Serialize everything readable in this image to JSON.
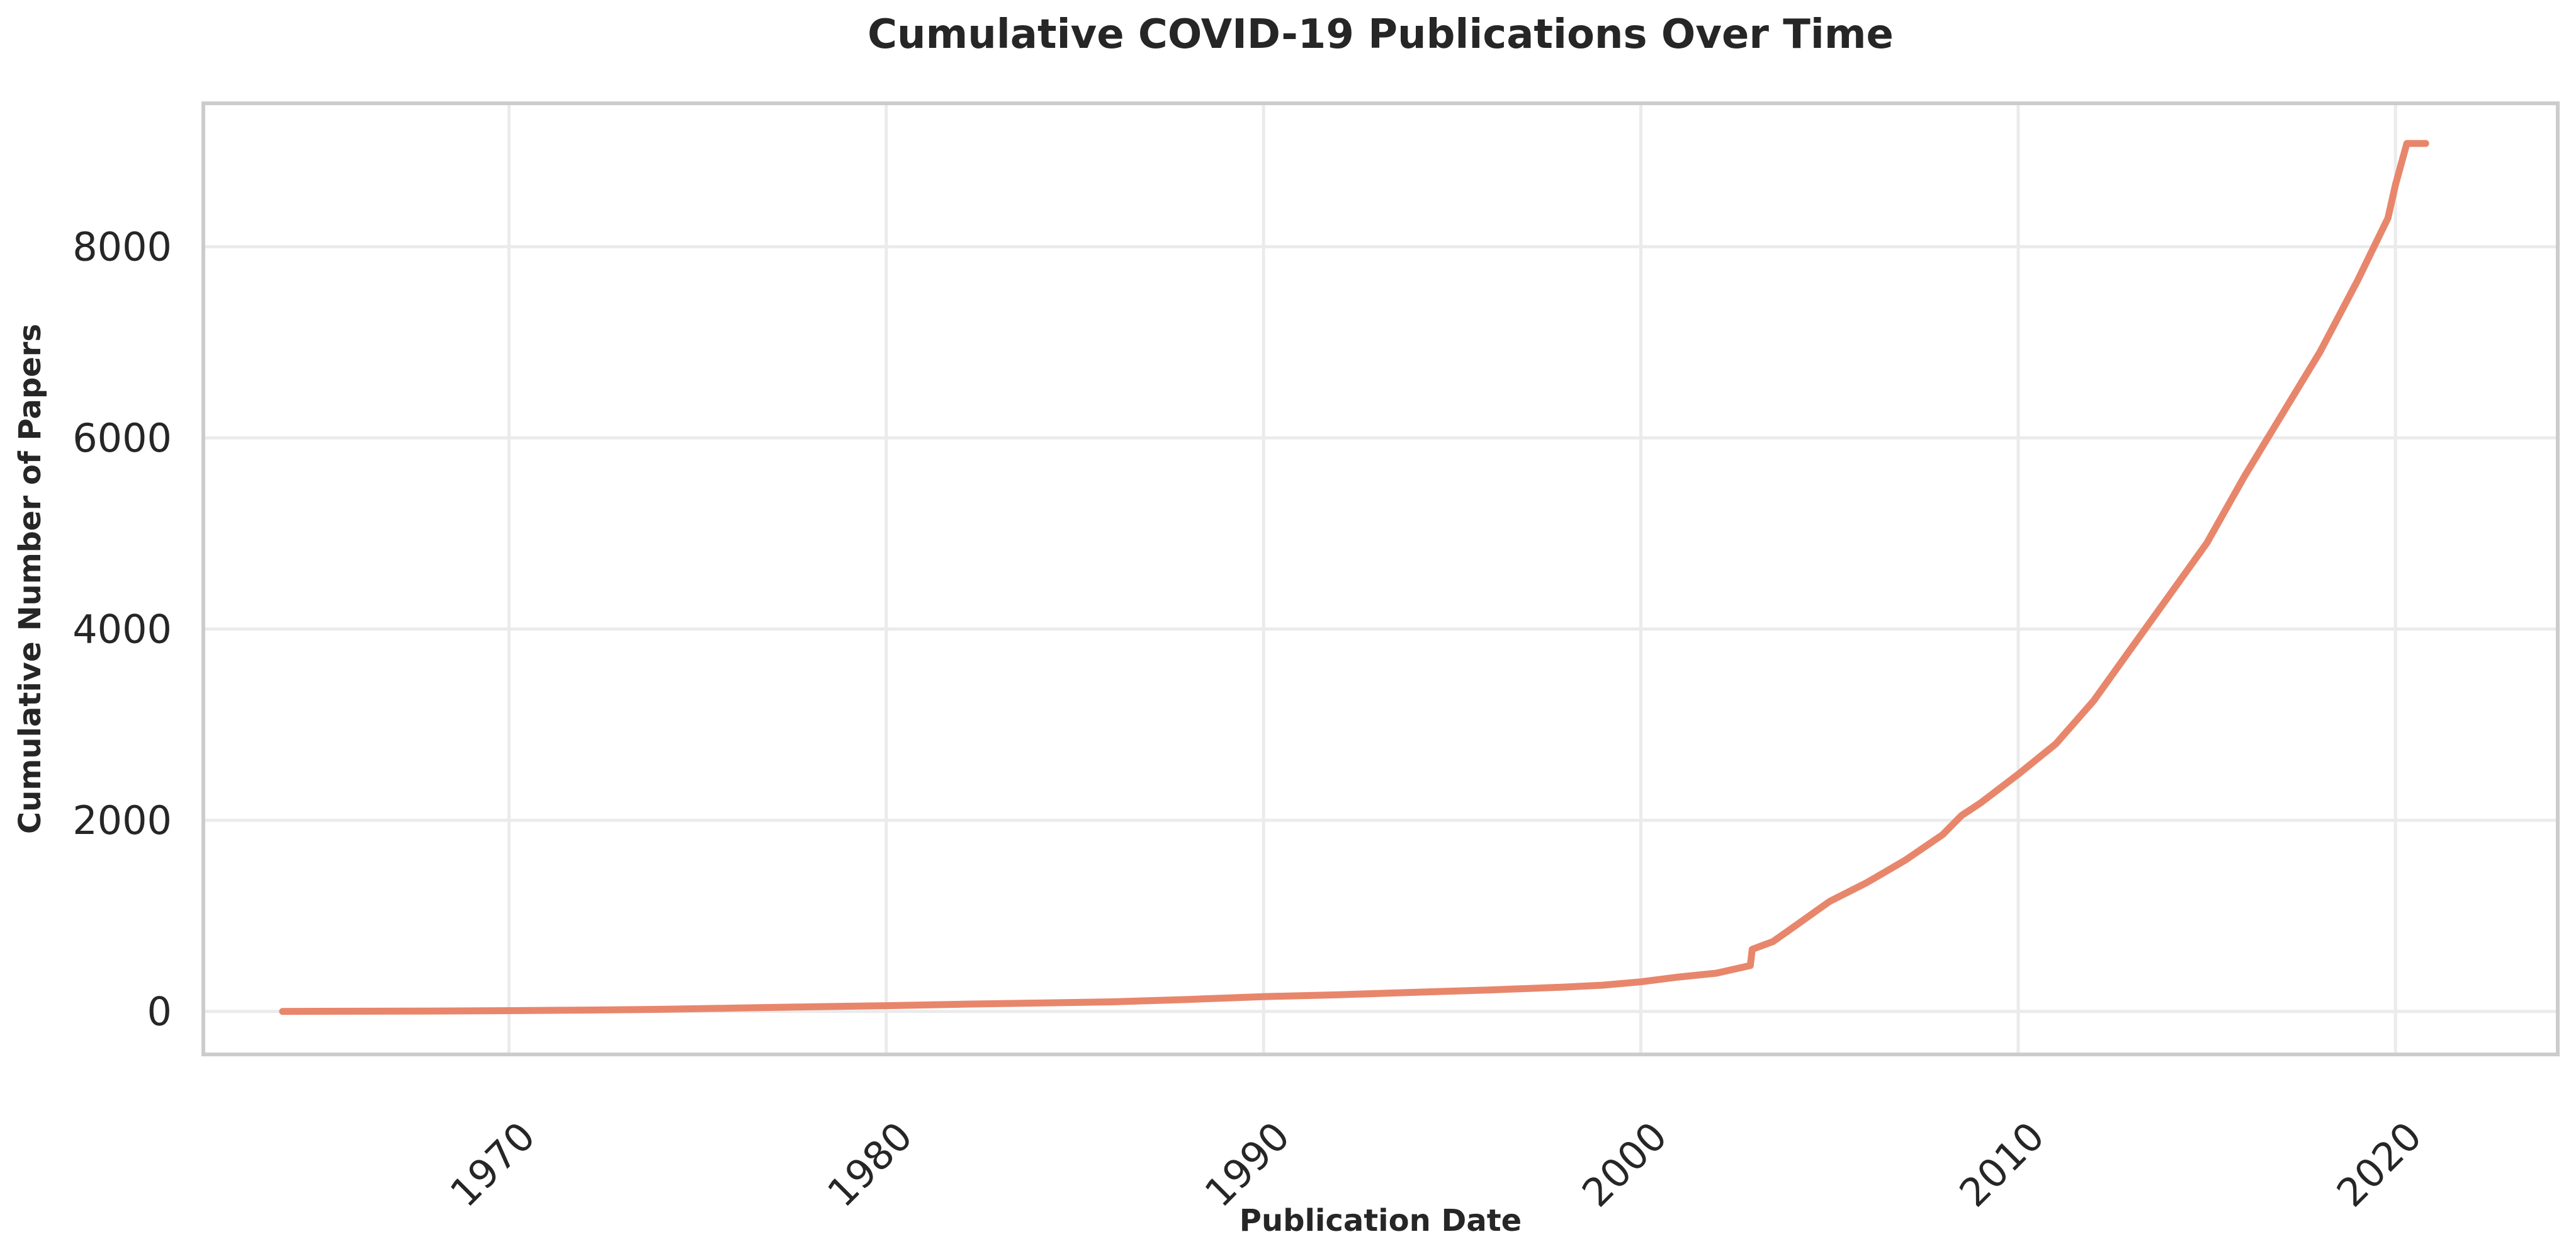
{
  "chart_data": {
    "type": "line",
    "title": "Cumulative COVID-19 Publications Over Time",
    "xlabel": "Publication Date",
    "ylabel": "Cumulative Number of Papers",
    "x_ticks": [
      "1970",
      "1980",
      "1990",
      "2000",
      "2010",
      "2020"
    ],
    "y_ticks": [
      "0",
      "2000",
      "4000",
      "6000",
      "8000"
    ],
    "xlim": [
      1961.9,
      2024.3
    ],
    "ylim": [
      -450,
      9500
    ],
    "grid": true,
    "line_color": "#E8866C",
    "series": [
      {
        "x": [
          1964.0,
          1966.0,
          1968.0,
          1970.0,
          1972.0,
          1974.0,
          1976.0,
          1978.0,
          1980.0,
          1982.0,
          1984.0,
          1986.0,
          1988.0,
          1990.0,
          1992.0,
          1994.0,
          1996.0,
          1998.0,
          1999.0,
          2000.0,
          2001.0,
          2002.0,
          2002.9,
          2002.95,
          2003.5,
          2004.0,
          2005.0,
          2006.0,
          2007.0,
          2008.0,
          2008.5,
          2009.0,
          2010.0,
          2011.0,
          2012.0,
          2013.0,
          2014.0,
          2015.0,
          2016.0,
          2017.0,
          2018.0,
          2019.0,
          2019.8,
          2020.0,
          2020.3,
          2020.8
        ],
        "y": [
          0,
          2,
          4,
          8,
          14,
          22,
          35,
          48,
          60,
          75,
          88,
          100,
          125,
          155,
          175,
          200,
          225,
          255,
          275,
          310,
          360,
          400,
          480,
          650,
          730,
          870,
          1150,
          1350,
          1580,
          1850,
          2050,
          2180,
          2480,
          2800,
          3250,
          3800,
          4350,
          4900,
          5600,
          6250,
          6900,
          7650,
          8300,
          8650,
          9080,
          9080
        ]
      }
    ]
  }
}
